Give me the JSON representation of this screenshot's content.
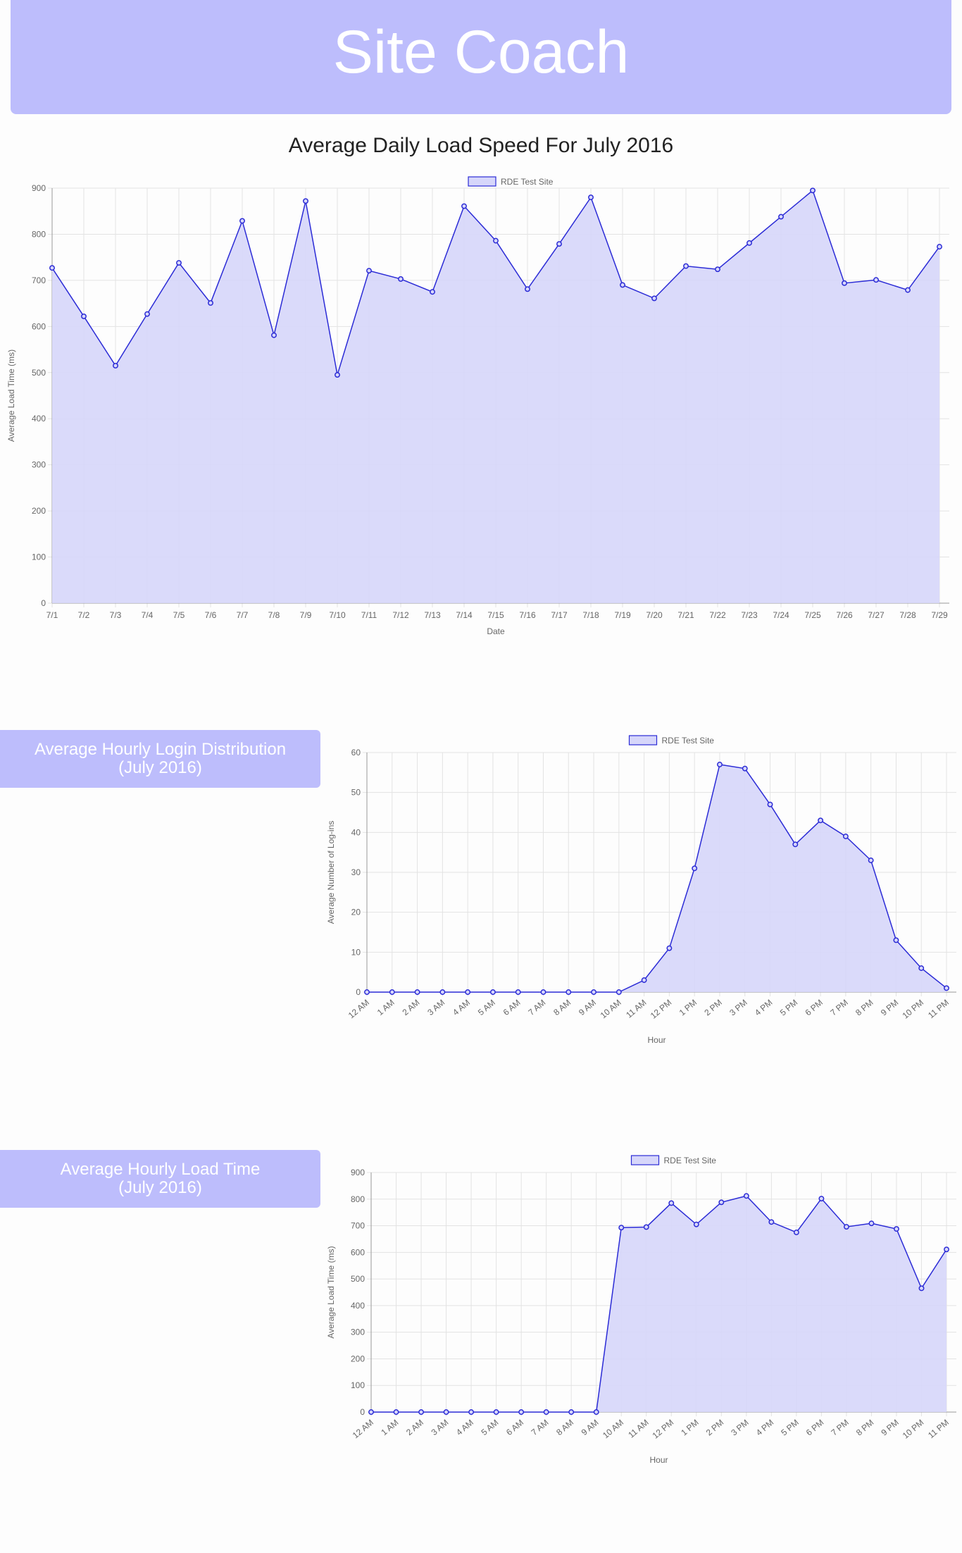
{
  "header": {
    "title": "Site Coach"
  },
  "colors": {
    "accent": "#bdbdfc",
    "line": "#2b2bd6",
    "fill": "#d6d6fa",
    "grid": "#e3e3e3"
  },
  "sections": [
    {
      "title_line1": "Average Hourly Login Distribution",
      "title_line2": "(July 2016)"
    },
    {
      "title_line1": "Average Hourly Load Time",
      "title_line2": "(July 2016)"
    }
  ],
  "chart_data": [
    {
      "type": "area",
      "title": "Average Daily Load Speed For July 2016",
      "xlabel": "Date",
      "ylabel": "Average Load Time (ms)",
      "ylim": [
        0,
        900
      ],
      "yticks": [
        0,
        100,
        200,
        300,
        400,
        500,
        600,
        700,
        800,
        900
      ],
      "grid": true,
      "legend": "top-center",
      "categories": [
        "7/1",
        "7/2",
        "7/3",
        "7/4",
        "7/5",
        "7/6",
        "7/7",
        "7/8",
        "7/9",
        "7/10",
        "7/11",
        "7/12",
        "7/13",
        "7/14",
        "7/15",
        "7/16",
        "7/17",
        "7/18",
        "7/19",
        "7/20",
        "7/21",
        "7/22",
        "7/23",
        "7/24",
        "7/25",
        "7/26",
        "7/27",
        "7/28",
        "7/29"
      ],
      "series": [
        {
          "name": "RDE Test Site",
          "values": [
            727,
            622,
            515,
            627,
            738,
            651,
            829,
            581,
            872,
            495,
            721,
            703,
            675,
            861,
            786,
            681,
            779,
            880,
            690,
            661,
            731,
            724,
            781,
            838,
            895,
            694,
            701,
            679,
            773
          ]
        }
      ]
    },
    {
      "type": "area",
      "title": "",
      "xlabel": "Hour",
      "ylabel": "Average Number of Log-ins",
      "ylim": [
        0,
        60
      ],
      "yticks": [
        0,
        10,
        20,
        30,
        40,
        50,
        60
      ],
      "grid": true,
      "legend": "top-center",
      "categories": [
        "12 AM",
        "1 AM",
        "2 AM",
        "3 AM",
        "4 AM",
        "5 AM",
        "6 AM",
        "7 AM",
        "8 AM",
        "9 AM",
        "10 AM",
        "11 AM",
        "12 PM",
        "1 PM",
        "2 PM",
        "3 PM",
        "4 PM",
        "5 PM",
        "6 PM",
        "7 PM",
        "8 PM",
        "9 PM",
        "10 PM",
        "11 PM"
      ],
      "series": [
        {
          "name": "RDE Test Site",
          "values": [
            0,
            0,
            0,
            0,
            0,
            0,
            0,
            0,
            0,
            0,
            0,
            3,
            11,
            31,
            57,
            56,
            47,
            37,
            43,
            39,
            33,
            13,
            6,
            1
          ]
        }
      ]
    },
    {
      "type": "area",
      "title": "",
      "xlabel": "Hour",
      "ylabel": "Average Load Time (ms)",
      "ylim": [
        0,
        900
      ],
      "yticks": [
        0,
        100,
        200,
        300,
        400,
        500,
        600,
        700,
        800,
        900
      ],
      "grid": true,
      "legend": "top-center",
      "categories": [
        "12 AM",
        "1 AM",
        "2 AM",
        "3 AM",
        "4 AM",
        "5 AM",
        "6 AM",
        "7 AM",
        "8 AM",
        "9 AM",
        "10 AM",
        "11 AM",
        "12 PM",
        "1 PM",
        "2 PM",
        "3 PM",
        "4 PM",
        "5 PM",
        "6 PM",
        "7 PM",
        "8 PM",
        "9 PM",
        "10 PM",
        "11 PM"
      ],
      "series": [
        {
          "name": "RDE Test Site",
          "values": [
            0,
            0,
            0,
            0,
            0,
            0,
            0,
            0,
            0,
            0,
            693,
            695,
            785,
            705,
            788,
            812,
            714,
            675,
            802,
            696,
            709,
            688,
            465,
            611
          ]
        }
      ]
    }
  ]
}
